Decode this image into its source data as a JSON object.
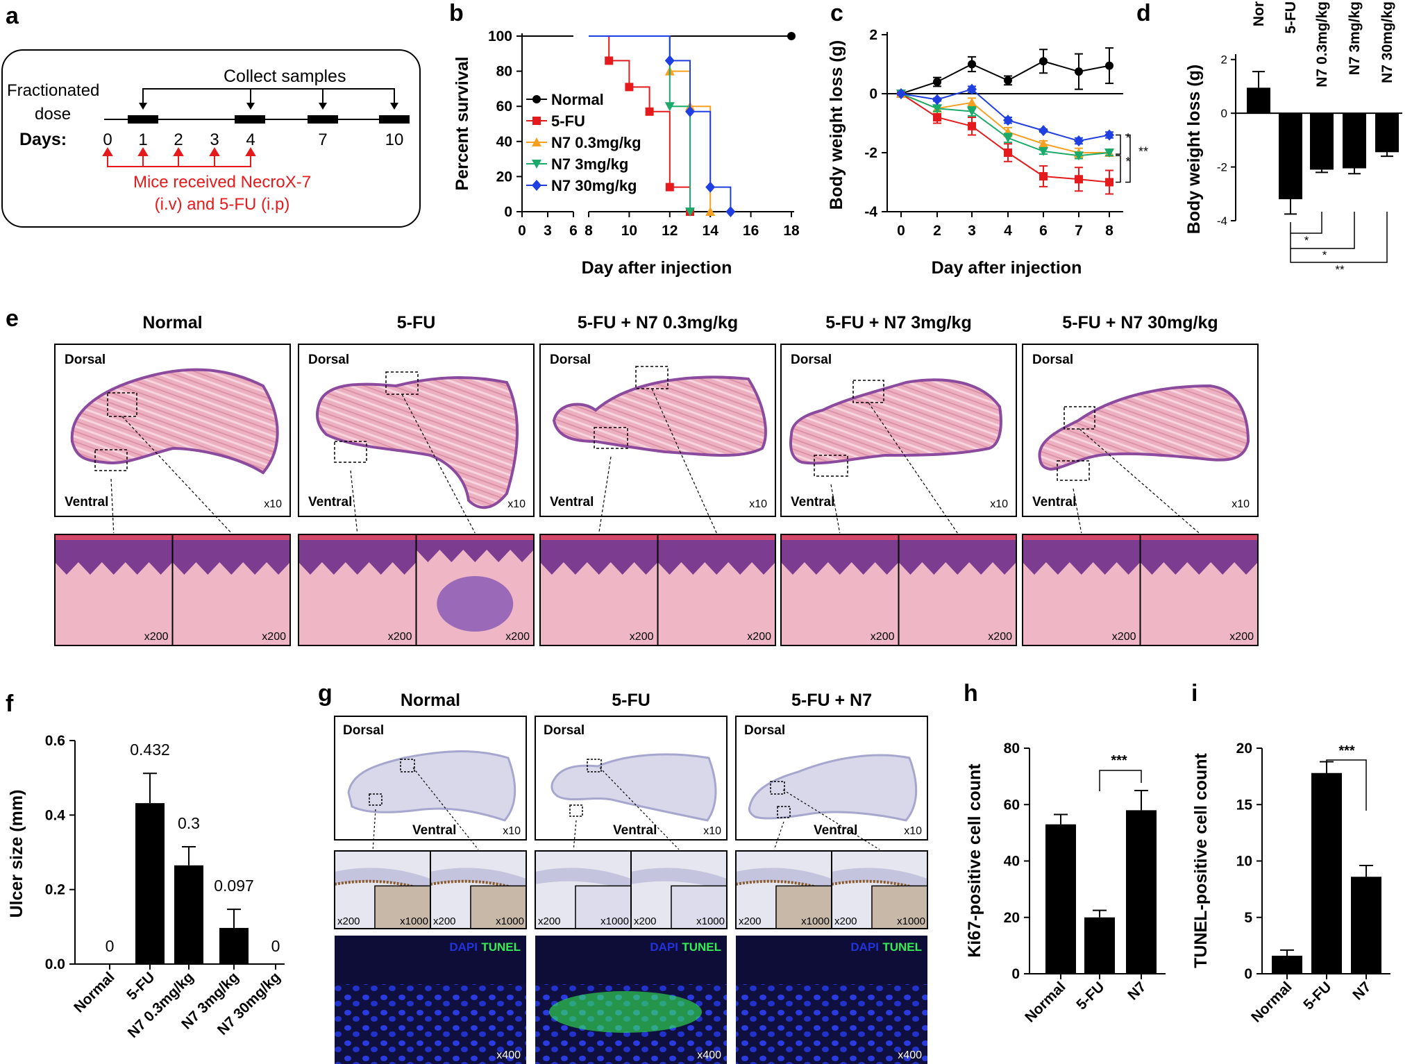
{
  "panels": {
    "a": {
      "letter": "a",
      "fractionated": [
        "Fractionated",
        "dose"
      ],
      "collect": "Collect samples",
      "days_label": "Days:",
      "days": [
        "0",
        "1",
        "2",
        "3",
        "4",
        "7",
        "10"
      ],
      "mice_line1": "Mice received NecroX-7",
      "mice_line2": "(i.v) and 5-FU (i.p)"
    },
    "b": {
      "letter": "b"
    },
    "c": {
      "letter": "c"
    },
    "d": {
      "letter": "d"
    },
    "e": {
      "letter": "e",
      "groups": [
        "Normal",
        "5-FU",
        "5-FU + N7 0.3mg/kg",
        "5-FU + N7 3mg/kg",
        "5-FU + N7 30mg/kg"
      ],
      "dorsal": "Dorsal",
      "ventral": "Ventral",
      "mag_low": "x10",
      "mag_high": "x200"
    },
    "f": {
      "letter": "f"
    },
    "g": {
      "letter": "g",
      "groups": [
        "Normal",
        "5-FU",
        "5-FU + N7"
      ],
      "dorsal": "Dorsal",
      "ventral": "Ventral",
      "mag_low": "x10",
      "mag_mid": "x200",
      "mag_high": "x1000",
      "mag_fluor": "x400",
      "dapi": "DAPI",
      "tunel": "TUNEL"
    },
    "h": {
      "letter": "h"
    },
    "i": {
      "letter": "i"
    }
  },
  "colors": {
    "normal": "#000000",
    "fu": "#e41a1c",
    "n7_03": "#f5a020",
    "n7_3": "#1aaa6a",
    "n7_30": "#1f3fe0",
    "he_pink": "#e9a6b8",
    "he_purple": "#8c4a9e",
    "ihc_bg": "#e4e4ef",
    "ihc_brown": "#8a5a2a",
    "dapi": "#2233dd",
    "tunel": "#33ee55"
  },
  "chart_data": [
    {
      "id": "b",
      "type": "line",
      "title": "",
      "xlabel": "Day after injection",
      "ylabel": "Percent survival",
      "x_ticks": [
        0,
        3,
        6,
        8,
        10,
        12,
        14,
        16,
        18
      ],
      "y_ticks": [
        0,
        20,
        40,
        60,
        80,
        100
      ],
      "ylim": [
        0,
        100
      ],
      "step": true,
      "series": [
        {
          "name": "Normal",
          "color": "#000000",
          "marker": "circle",
          "x": [
            0,
            18
          ],
          "y": [
            100,
            100
          ]
        },
        {
          "name": "5-FU",
          "color": "#e41a1c",
          "marker": "square",
          "x": [
            8,
            9,
            10,
            11,
            12,
            13
          ],
          "y": [
            100,
            86,
            71,
            57,
            14,
            0
          ]
        },
        {
          "name": "N7 0.3mg/kg",
          "color": "#f5a020",
          "marker": "triangle",
          "x": [
            8,
            12,
            13,
            14
          ],
          "y": [
            100,
            80,
            60,
            0
          ]
        },
        {
          "name": "N7 3mg/kg",
          "color": "#1aaa6a",
          "marker": "tri-down",
          "x": [
            8,
            12,
            13
          ],
          "y": [
            100,
            60,
            0
          ]
        },
        {
          "name": "N7 30mg/kg",
          "color": "#1f3fe0",
          "marker": "diamond",
          "x": [
            8,
            12,
            13,
            14,
            15
          ],
          "y": [
            100,
            86,
            57,
            14,
            0
          ]
        }
      ]
    },
    {
      "id": "c",
      "type": "line",
      "title": "",
      "xlabel": "Day after injection",
      "ylabel": "Body weight loss (g)",
      "x_ticks": [
        0,
        2,
        3,
        4,
        6,
        7,
        8
      ],
      "y_ticks": [
        -4,
        -2,
        0,
        2
      ],
      "ylim": [
        -4,
        2
      ],
      "significance": [
        "*",
        "*",
        "**"
      ],
      "series": [
        {
          "name": "Normal",
          "color": "#000000",
          "marker": "circle",
          "y": [
            0,
            0.4,
            1.0,
            0.45,
            1.1,
            0.75,
            0.95
          ],
          "err": [
            0,
            0.15,
            0.25,
            0.15,
            0.4,
            0.6,
            0.6
          ]
        },
        {
          "name": "5-FU",
          "color": "#e41a1c",
          "marker": "square",
          "y": [
            0,
            -0.8,
            -1.1,
            -2.0,
            -2.8,
            -2.9,
            -3.0
          ],
          "err": [
            0,
            0.2,
            0.3,
            0.3,
            0.35,
            0.4,
            0.4
          ]
        },
        {
          "name": "N7 0.3mg/kg",
          "color": "#f5a020",
          "marker": "triangle",
          "y": [
            0,
            -0.5,
            -0.3,
            -1.3,
            -1.7,
            -2.0,
            -2.0
          ],
          "err": [
            0,
            0.1,
            0.15,
            0.15,
            0.1,
            0.15,
            0.1
          ]
        },
        {
          "name": "N7 3mg/kg",
          "color": "#1aaa6a",
          "marker": "tri-down",
          "y": [
            0,
            -0.5,
            -0.6,
            -1.5,
            -1.95,
            -2.1,
            -2.0
          ],
          "err": [
            0,
            0.1,
            0.15,
            0.15,
            0.1,
            0.1,
            0.1
          ]
        },
        {
          "name": "N7 30mg/kg",
          "color": "#1f3fe0",
          "marker": "diamond",
          "y": [
            0,
            -0.2,
            0.15,
            -0.9,
            -1.25,
            -1.6,
            -1.4
          ],
          "err": [
            0,
            0.05,
            0.1,
            0.1,
            0.05,
            0.1,
            0.1
          ]
        }
      ]
    },
    {
      "id": "d",
      "type": "bar",
      "title": "",
      "xlabel": "",
      "ylabel": "Body weight loss (g)",
      "categories": [
        "Nor",
        "5-FU",
        "N7 0.3mg/kg",
        "N7 3mg/kg",
        "N7 30mg/kg"
      ],
      "values": [
        0.95,
        -3.2,
        -2.1,
        -2.05,
        -1.45
      ],
      "err": [
        0.6,
        0.55,
        0.1,
        0.2,
        0.15
      ],
      "y_ticks": [
        -4,
        -2,
        0,
        2
      ],
      "ylim": [
        -4,
        2.2
      ],
      "significance": [
        "*",
        "*",
        "**"
      ]
    },
    {
      "id": "f",
      "type": "bar",
      "title": "",
      "xlabel": "",
      "ylabel": "Ulcer size (mm)",
      "categories": [
        "Normal",
        "5-FU",
        "N7 0.3mg/kg",
        "N7 3mg/kg",
        "N7 30mg/kg"
      ],
      "values": [
        0,
        0.432,
        0.265,
        0.097,
        0
      ],
      "value_labels": [
        "0",
        "0.432",
        "0.3",
        "0.097",
        "0"
      ],
      "err": [
        0,
        0.08,
        0.05,
        0.05,
        0
      ],
      "y_ticks": [
        "0.0",
        "0.2",
        "0.4",
        "0.6"
      ],
      "ylim": [
        0,
        0.6
      ]
    },
    {
      "id": "h",
      "type": "bar",
      "title": "",
      "xlabel": "",
      "ylabel": "Ki67-positive cell count",
      "categories": [
        "Normal",
        "5-FU",
        "N7"
      ],
      "values": [
        53,
        20,
        58
      ],
      "err": [
        3.5,
        2.5,
        7
      ],
      "y_ticks": [
        0,
        20,
        40,
        60,
        80
      ],
      "ylim": [
        0,
        80
      ],
      "significance": [
        "***"
      ]
    },
    {
      "id": "i",
      "type": "bar",
      "title": "",
      "xlabel": "",
      "ylabel": "TUNEL-positive cell count",
      "categories": [
        "Normal",
        "5-FU",
        "N7"
      ],
      "values": [
        1.6,
        17.8,
        8.6
      ],
      "err": [
        0.5,
        1.0,
        1.0
      ],
      "y_ticks": [
        0,
        5,
        10,
        15,
        20
      ],
      "ylim": [
        0,
        20
      ],
      "significance": [
        "***"
      ]
    }
  ]
}
